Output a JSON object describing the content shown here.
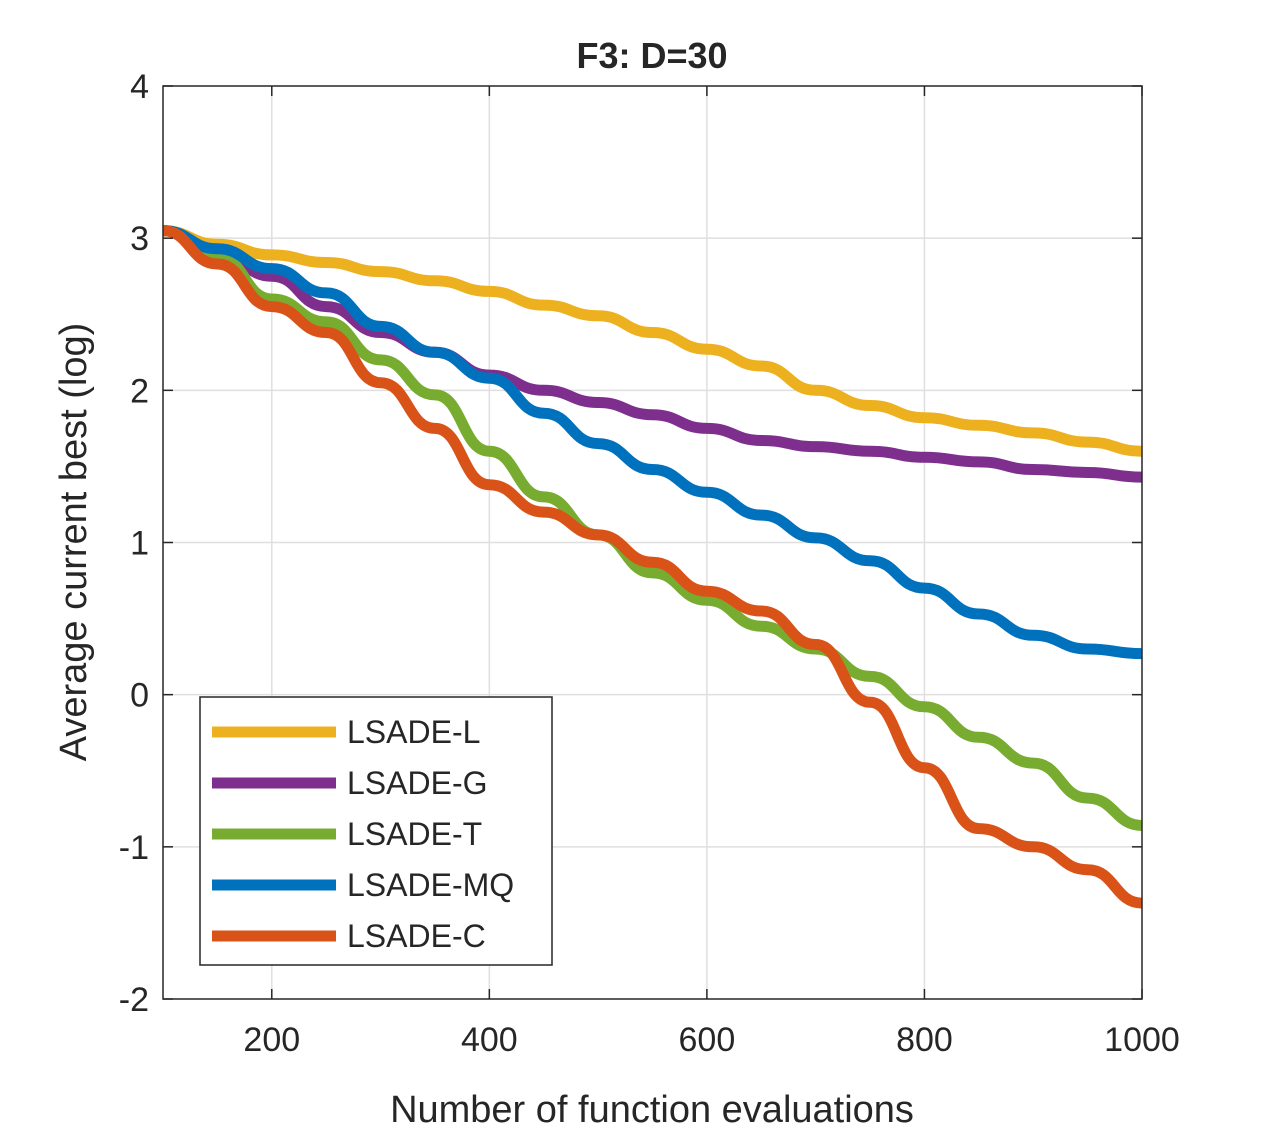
{
  "chart_data": {
    "type": "line",
    "title": "F3: D=30",
    "xlabel": "Number of function evaluations",
    "ylabel": "Average current best (log)",
    "xlim": [
      100,
      1000
    ],
    "ylim": [
      -2,
      4
    ],
    "xticks": [
      200,
      400,
      600,
      800,
      1000
    ],
    "yticks": [
      -2,
      -1,
      0,
      1,
      2,
      3,
      4
    ],
    "grid": true,
    "legend_position": "bottom-left",
    "series": [
      {
        "name": "LSADE-L",
        "color": "#EDB120",
        "x": [
          100,
          150,
          200,
          250,
          300,
          350,
          400,
          450,
          500,
          550,
          600,
          650,
          700,
          750,
          800,
          850,
          900,
          950,
          1000
        ],
        "y": [
          3.05,
          2.96,
          2.89,
          2.84,
          2.78,
          2.72,
          2.65,
          2.56,
          2.49,
          2.38,
          2.27,
          2.16,
          2.0,
          1.9,
          1.82,
          1.77,
          1.72,
          1.66,
          1.6
        ]
      },
      {
        "name": "LSADE-G",
        "color": "#7E2F8E",
        "x": [
          100,
          150,
          200,
          250,
          300,
          350,
          400,
          450,
          500,
          550,
          600,
          650,
          700,
          750,
          800,
          850,
          900,
          950,
          1000
        ],
        "y": [
          3.05,
          2.9,
          2.75,
          2.55,
          2.38,
          2.25,
          2.1,
          2.0,
          1.92,
          1.84,
          1.75,
          1.67,
          1.63,
          1.6,
          1.56,
          1.53,
          1.48,
          1.46,
          1.43
        ]
      },
      {
        "name": "LSADE-T",
        "color": "#77AC30",
        "x": [
          100,
          150,
          200,
          250,
          300,
          350,
          400,
          450,
          500,
          550,
          600,
          650,
          700,
          750,
          800,
          850,
          900,
          950,
          1000
        ],
        "y": [
          3.05,
          2.88,
          2.6,
          2.45,
          2.2,
          1.97,
          1.6,
          1.3,
          1.05,
          0.8,
          0.62,
          0.45,
          0.3,
          0.12,
          -0.08,
          -0.28,
          -0.45,
          -0.68,
          -0.86
        ]
      },
      {
        "name": "LSADE-MQ",
        "color": "#0072BD",
        "x": [
          100,
          150,
          200,
          250,
          300,
          350,
          400,
          450,
          500,
          550,
          600,
          650,
          700,
          750,
          800,
          850,
          900,
          950,
          1000
        ],
        "y": [
          3.05,
          2.93,
          2.8,
          2.64,
          2.42,
          2.25,
          2.08,
          1.85,
          1.65,
          1.48,
          1.33,
          1.18,
          1.03,
          0.88,
          0.7,
          0.53,
          0.39,
          0.3,
          0.27
        ]
      },
      {
        "name": "LSADE-C",
        "color": "#D95319",
        "x": [
          100,
          150,
          200,
          250,
          300,
          350,
          400,
          450,
          500,
          550,
          600,
          650,
          700,
          750,
          800,
          850,
          900,
          950,
          1000
        ],
        "y": [
          3.05,
          2.83,
          2.55,
          2.38,
          2.05,
          1.75,
          1.38,
          1.2,
          1.05,
          0.87,
          0.68,
          0.55,
          0.33,
          -0.05,
          -0.48,
          -0.88,
          -1.0,
          -1.15,
          -1.37
        ]
      }
    ]
  }
}
